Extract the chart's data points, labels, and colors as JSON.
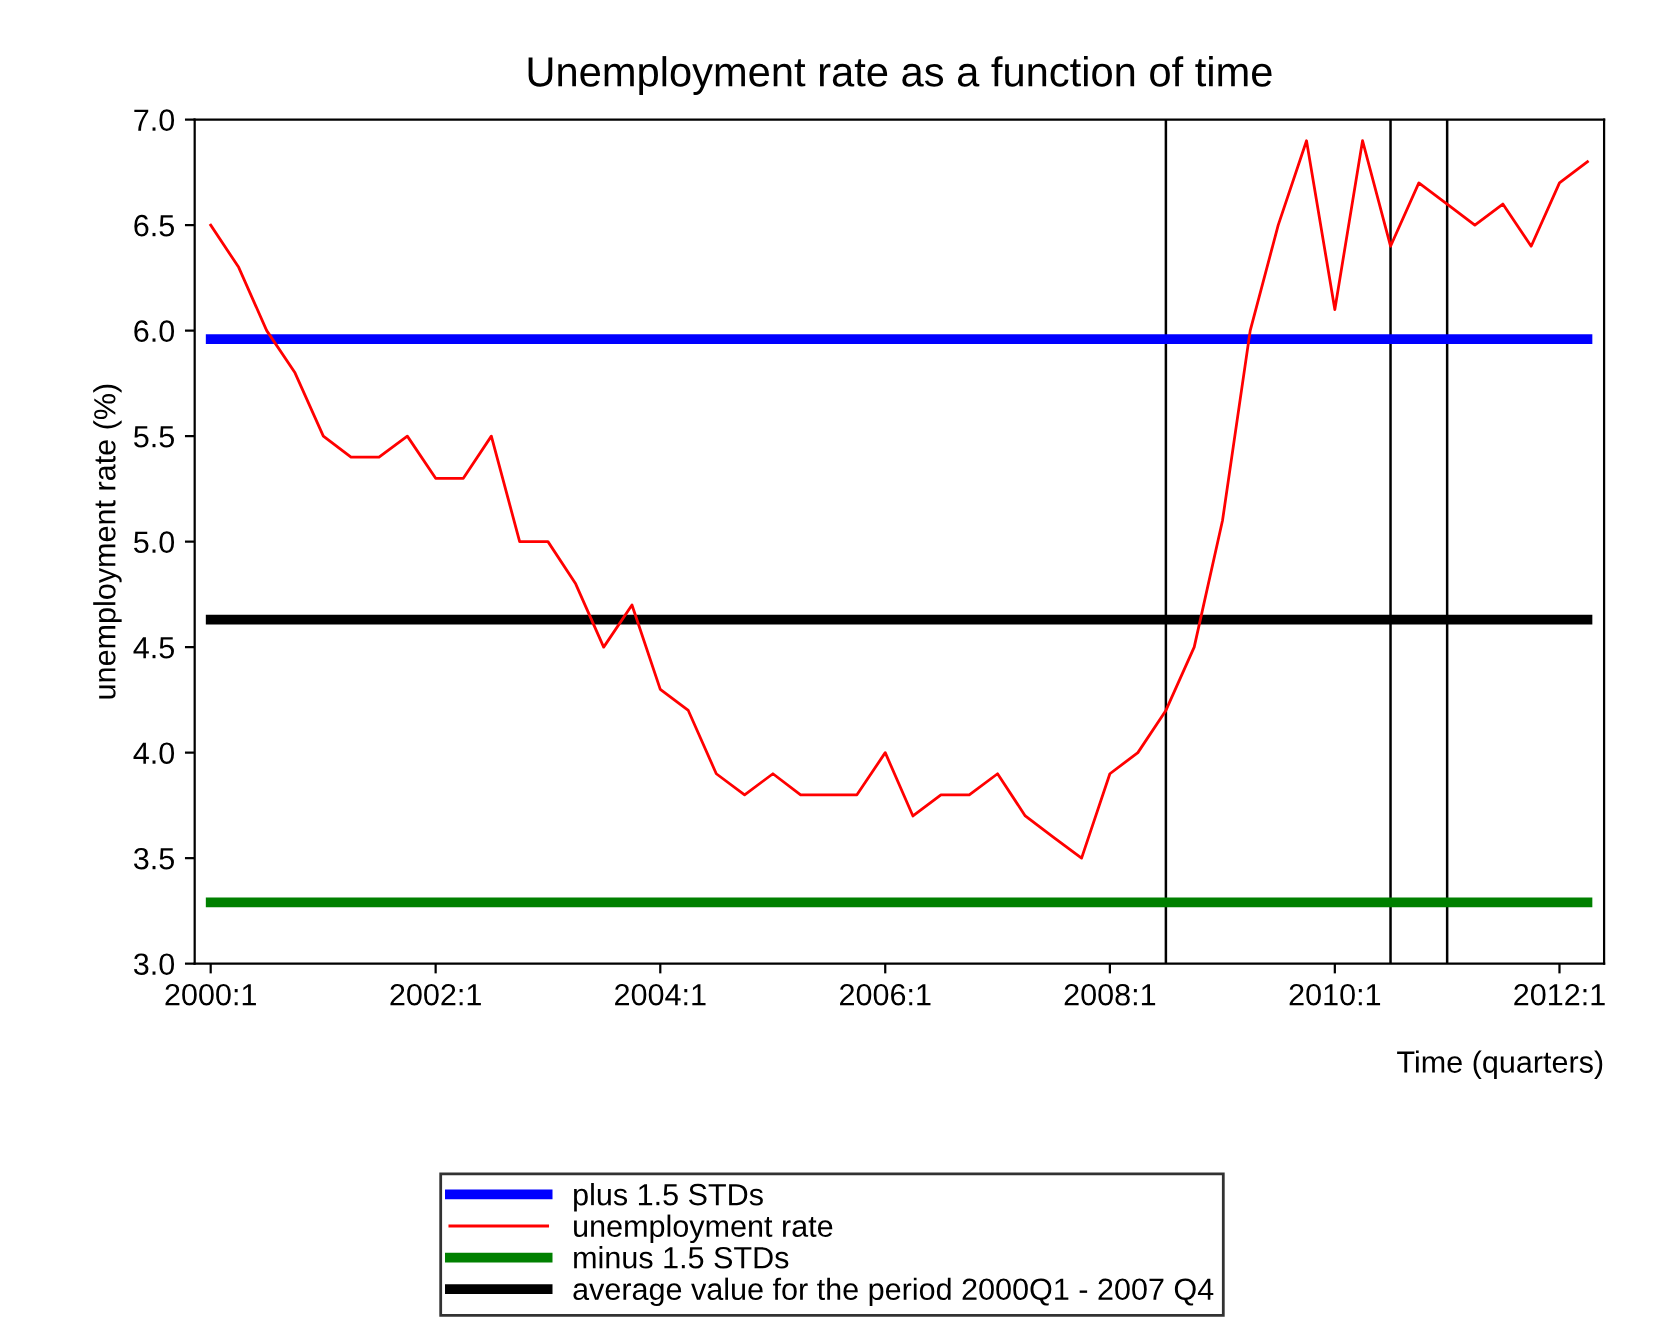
{
  "chart_data": {
    "type": "line",
    "title": "Unemployment rate as a function of time",
    "xlabel": "Time (quarters)",
    "ylabel": "unemployment rate (%)",
    "xlim": [
      "1999-11-10",
      "2012-05-25"
    ],
    "xticks": [
      {
        "value": "2000-01",
        "label": "2000:1"
      },
      {
        "value": "2002-01",
        "label": "2002:1"
      },
      {
        "value": "2004-01",
        "label": "2004:1"
      },
      {
        "value": "2006-01",
        "label": "2006:1"
      },
      {
        "value": "2008-01",
        "label": "2008:1"
      },
      {
        "value": "2010-01",
        "label": "2010:1"
      },
      {
        "value": "2012-01",
        "label": "2012:1"
      }
    ],
    "ylim": [
      3.0,
      7.0
    ],
    "yticks": [
      {
        "value": 3.0,
        "label": "3.0"
      },
      {
        "value": 3.5,
        "label": "3.5"
      },
      {
        "value": 4.0,
        "label": "4.0"
      },
      {
        "value": 4.5,
        "label": "4.5"
      },
      {
        "value": 5.0,
        "label": "5.0"
      },
      {
        "value": 5.5,
        "label": "5.5"
      },
      {
        "value": 6.0,
        "label": "6.0"
      },
      {
        "value": 6.5,
        "label": "6.5"
      },
      {
        "value": 7.0,
        "label": "7.0"
      }
    ],
    "grid": false,
    "legend": "bottom",
    "marker": "none",
    "line_style": "solid",
    "ref_lines": [
      {
        "axis": "x",
        "value": "2008-07",
        "color": "#000000"
      },
      {
        "axis": "x",
        "value": "2010-07",
        "color": "#000000"
      },
      {
        "axis": "x",
        "value": "2011-01",
        "color": "#000000"
      }
    ],
    "series": [
      {
        "name": "plus 1.5 STDs",
        "color": "#0000ff",
        "x": [
          "2000-01",
          "2012-04"
        ],
        "values": [
          5.96,
          5.96
        ]
      },
      {
        "name": "unemployment rate",
        "color": "#ff0000",
        "x": [
          "2000-01",
          "2000-04",
          "2000-07",
          "2000-10",
          "2001-01",
          "2001-04",
          "2001-07",
          "2001-10",
          "2002-01",
          "2002-04",
          "2002-07",
          "2002-10",
          "2003-01",
          "2003-04",
          "2003-07",
          "2003-10",
          "2004-01",
          "2004-04",
          "2004-07",
          "2004-10",
          "2005-01",
          "2005-04",
          "2005-07",
          "2005-10",
          "2006-01",
          "2006-04",
          "2006-07",
          "2006-10",
          "2007-01",
          "2007-04",
          "2007-07",
          "2007-10",
          "2008-01",
          "2008-04",
          "2008-07",
          "2008-10",
          "2009-01",
          "2009-04",
          "2009-07",
          "2009-10",
          "2010-01",
          "2010-04",
          "2010-07",
          "2010-10",
          "2011-01",
          "2011-04",
          "2011-07",
          "2011-10",
          "2012-01",
          "2012-04"
        ],
        "values": [
          6.5,
          6.3,
          6.0,
          5.8,
          5.5,
          5.4,
          5.4,
          5.5,
          5.3,
          5.3,
          5.5,
          5.0,
          5.0,
          4.8,
          4.5,
          4.7,
          4.3,
          4.2,
          3.9,
          3.8,
          3.9,
          3.8,
          3.8,
          3.8,
          4.0,
          3.7,
          3.8,
          3.8,
          3.9,
          3.7,
          3.6,
          3.5,
          3.9,
          4.0,
          4.2,
          4.5,
          5.1,
          6.0,
          6.5,
          6.9,
          6.1,
          6.9,
          6.4,
          6.7,
          6.6,
          6.5,
          6.6,
          6.4,
          6.7,
          6.8
        ]
      },
      {
        "name": "minus 1.5 STDs",
        "color": "#008000",
        "x": [
          "2000-01",
          "2012-04"
        ],
        "values": [
          3.29,
          3.29
        ]
      },
      {
        "name": "average value for the period 2000Q1 - 2007 Q4",
        "color": "#000000",
        "x": [
          "2000-01",
          "2012-04"
        ],
        "values": [
          4.63,
          4.63
        ]
      }
    ]
  }
}
